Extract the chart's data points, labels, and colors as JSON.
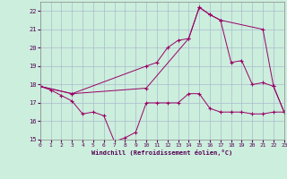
{
  "xlabel": "Windchill (Refroidissement éolien,°C)",
  "bg_color": "#cceedd",
  "grid_color": "#aabbcc",
  "line_color": "#990066",
  "xlim": [
    0,
    23
  ],
  "ylim": [
    15,
    22.5
  ],
  "xticks": [
    0,
    1,
    2,
    3,
    4,
    5,
    6,
    7,
    8,
    9,
    10,
    11,
    12,
    13,
    14,
    15,
    16,
    17,
    18,
    19,
    20,
    21,
    22,
    23
  ],
  "yticks": [
    15,
    16,
    17,
    18,
    19,
    20,
    21,
    22
  ],
  "series1": [
    [
      0,
      17.9
    ],
    [
      1,
      17.7
    ],
    [
      2,
      17.4
    ],
    [
      3,
      17.1
    ],
    [
      4,
      16.4
    ],
    [
      5,
      16.5
    ],
    [
      6,
      16.3
    ],
    [
      7,
      14.9
    ],
    [
      8,
      15.1
    ],
    [
      9,
      15.4
    ],
    [
      10,
      17.0
    ],
    [
      11,
      17.0
    ],
    [
      12,
      17.0
    ],
    [
      13,
      17.0
    ],
    [
      14,
      17.5
    ],
    [
      15,
      17.5
    ],
    [
      16,
      16.7
    ],
    [
      17,
      16.5
    ],
    [
      18,
      16.5
    ],
    [
      19,
      16.5
    ],
    [
      20,
      16.4
    ],
    [
      21,
      16.4
    ],
    [
      22,
      16.5
    ],
    [
      23,
      16.5
    ]
  ],
  "series2": [
    [
      0,
      17.9
    ],
    [
      3,
      17.5
    ],
    [
      10,
      17.8
    ],
    [
      14,
      20.5
    ],
    [
      15,
      22.2
    ],
    [
      16,
      21.8
    ],
    [
      17,
      21.5
    ],
    [
      21,
      21.0
    ],
    [
      22,
      17.9
    ],
    [
      23,
      16.5
    ]
  ],
  "series3": [
    [
      0,
      17.9
    ],
    [
      3,
      17.5
    ],
    [
      10,
      19.0
    ],
    [
      11,
      19.2
    ],
    [
      12,
      20.0
    ],
    [
      13,
      20.4
    ],
    [
      14,
      20.5
    ],
    [
      15,
      22.2
    ],
    [
      16,
      21.8
    ],
    [
      17,
      21.5
    ],
    [
      18,
      19.2
    ],
    [
      19,
      19.3
    ],
    [
      20,
      18.0
    ],
    [
      21,
      18.1
    ],
    [
      22,
      17.9
    ],
    [
      23,
      16.5
    ]
  ]
}
